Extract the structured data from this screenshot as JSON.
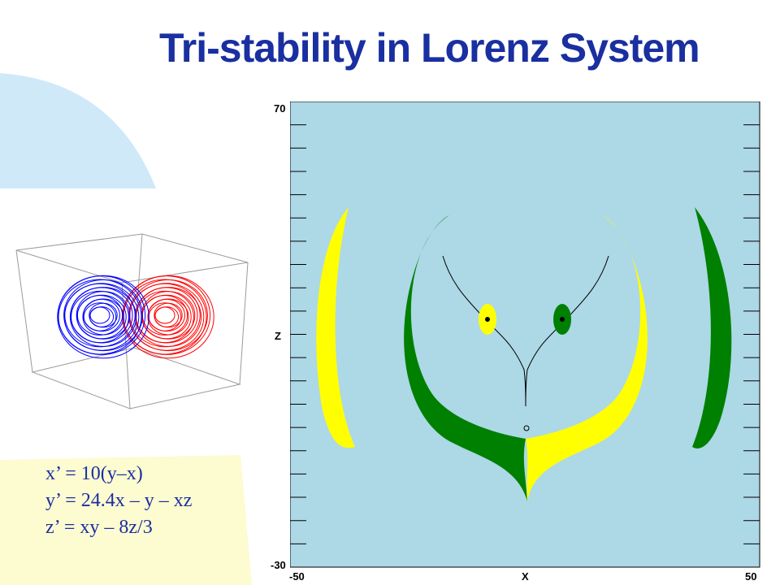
{
  "slide": {
    "title": "Tri-stability in Lorenz System"
  },
  "equations": [
    "x’ = 10(y–x)",
    "y’ = 24.4x – y – xz",
    "z’ = xy – 8z/3"
  ],
  "phase_plot": {
    "x_axis": {
      "label": "X",
      "min_label": "-50",
      "max_label": "50"
    },
    "z_axis": {
      "label": "Z",
      "min_label": "-30",
      "max_label": "70"
    },
    "colors": {
      "background": "#add8e6",
      "basin_a": "#ffff00",
      "basin_b": "#008000",
      "attractor_left": "#0000ff",
      "attractor_right": "#ff0000"
    }
  }
}
